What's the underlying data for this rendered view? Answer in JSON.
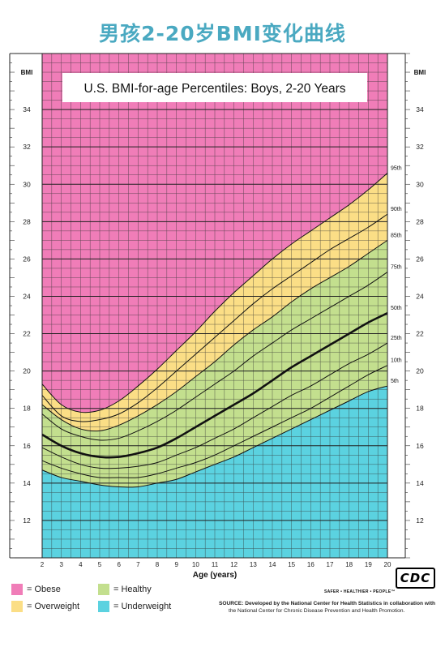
{
  "page_title": "男孩2-20岁BMI变化曲线",
  "legend": [
    {
      "label": "= Obese",
      "color": "#f07db8"
    },
    {
      "label": "= Healthy",
      "color": "#c3df8e"
    },
    {
      "label": "= Overweight",
      "color": "#fbde86"
    },
    {
      "label": "= Underweight",
      "color": "#5bd2e0"
    }
  ],
  "source": {
    "line1": "SOURCE: Developed by the National Center for Health Statistics in collaboration with",
    "line2": "the National Center for Chronic Disease Prevention and Health Promotion."
  },
  "cdc_logo_text": "CDC",
  "cdc_tagline": "SAFER • HEALTHIER • PEOPLE™",
  "chart_data": {
    "type": "line",
    "title": "U.S. BMI-for-age Percentiles: Boys, 2-20 Years",
    "xlabel": "Age (years)",
    "ylabel": "BMI",
    "xlim": [
      2,
      20
    ],
    "ylim": [
      10,
      37
    ],
    "x_ticks": [
      2,
      3,
      4,
      5,
      6,
      7,
      8,
      9,
      10,
      11,
      12,
      13,
      14,
      15,
      16,
      17,
      18,
      19,
      20
    ],
    "y_ticks": [
      12,
      14,
      16,
      18,
      20,
      22,
      24,
      26,
      28,
      30,
      32,
      34
    ],
    "grid": true,
    "zones": [
      {
        "name": "Obese",
        "from": "95th",
        "to": "top",
        "color": "#f07db8"
      },
      {
        "name": "Overweight",
        "from": "85th",
        "to": "95th",
        "color": "#fbde86"
      },
      {
        "name": "Healthy",
        "from": "5th",
        "to": "85th",
        "color": "#c3df8e"
      },
      {
        "name": "Underweight",
        "from": "bottom",
        "to": "5th",
        "color": "#5bd2e0"
      }
    ],
    "x": [
      2,
      3,
      4,
      5,
      6,
      7,
      8,
      9,
      10,
      11,
      12,
      13,
      14,
      15,
      16,
      17,
      18,
      19,
      20
    ],
    "series": [
      {
        "name": "95th",
        "values": [
          19.3,
          18.2,
          17.8,
          17.9,
          18.4,
          19.2,
          20.1,
          21.1,
          22.1,
          23.2,
          24.2,
          25.1,
          26.0,
          26.8,
          27.5,
          28.2,
          28.9,
          29.7,
          30.6
        ]
      },
      {
        "name": "90th",
        "values": [
          18.7,
          17.6,
          17.3,
          17.4,
          17.7,
          18.3,
          19.1,
          20.0,
          20.9,
          21.8,
          22.7,
          23.6,
          24.4,
          25.1,
          25.8,
          26.5,
          27.1,
          27.7,
          28.4
        ]
      },
      {
        "name": "85th",
        "values": [
          18.2,
          17.4,
          16.9,
          16.8,
          17.1,
          17.6,
          18.2,
          18.9,
          19.7,
          20.5,
          21.4,
          22.2,
          22.9,
          23.7,
          24.4,
          25.0,
          25.6,
          26.3,
          27.0
        ]
      },
      {
        "name": "75th",
        "values": [
          17.7,
          16.9,
          16.5,
          16.3,
          16.4,
          16.8,
          17.3,
          17.9,
          18.6,
          19.3,
          20.0,
          20.8,
          21.5,
          22.2,
          22.8,
          23.4,
          24.0,
          24.6,
          25.3
        ]
      },
      {
        "name": "50th",
        "values": [
          16.6,
          16.0,
          15.6,
          15.4,
          15.4,
          15.6,
          15.9,
          16.4,
          17.0,
          17.6,
          18.2,
          18.8,
          19.5,
          20.2,
          20.8,
          21.4,
          22.0,
          22.6,
          23.1
        ]
      },
      {
        "name": "25th",
        "values": [
          15.9,
          15.4,
          15.0,
          14.8,
          14.8,
          14.9,
          15.1,
          15.5,
          15.9,
          16.4,
          16.9,
          17.5,
          18.1,
          18.7,
          19.2,
          19.8,
          20.4,
          20.9,
          21.5
        ]
      },
      {
        "name": "10th",
        "values": [
          15.2,
          14.8,
          14.5,
          14.3,
          14.3,
          14.3,
          14.5,
          14.8,
          15.1,
          15.5,
          16.0,
          16.5,
          17.0,
          17.5,
          18.0,
          18.6,
          19.2,
          19.8,
          20.3
        ]
      },
      {
        "name": "5th",
        "values": [
          14.7,
          14.3,
          14.1,
          13.9,
          13.8,
          13.8,
          14.0,
          14.2,
          14.6,
          15.0,
          15.4,
          15.9,
          16.4,
          16.9,
          17.4,
          17.9,
          18.4,
          18.9,
          19.2
        ]
      }
    ]
  }
}
